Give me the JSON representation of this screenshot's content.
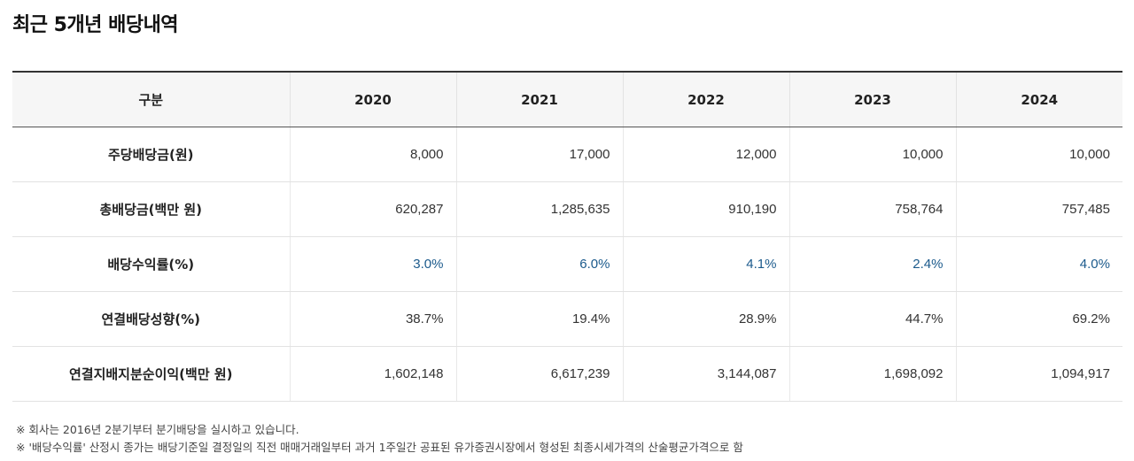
{
  "title": "최근 5개년 배당내역",
  "table": {
    "header": [
      "구분",
      "2020",
      "2021",
      "2022",
      "2023",
      "2024"
    ],
    "rows": [
      {
        "label": "주당배당금(원)",
        "values": [
          "8,000",
          "17,000",
          "12,000",
          "10,000",
          "10,000"
        ]
      },
      {
        "label": "총배당금(백만 원)",
        "values": [
          "620,287",
          "1,285,635",
          "910,190",
          "758,764",
          "757,485"
        ]
      },
      {
        "label": "배당수익률(%)",
        "values": [
          "3.0%",
          "6.0%",
          "4.1%",
          "2.4%",
          "4.0%"
        ]
      },
      {
        "label": "연결배당성향(%)",
        "values": [
          "38.7%",
          "19.4%",
          "28.9%",
          "44.7%",
          "69.2%"
        ]
      },
      {
        "label": "연결지배지분순이익(백만 원)",
        "values": [
          "1,602,148",
          "6,617,239",
          "3,144,087",
          "1,698,092",
          "1,094,917"
        ]
      }
    ]
  },
  "colors": {
    "yield_value": "#1b5a8c",
    "header_bg": "#f6f6f6"
  },
  "notes": [
    "※ 회사는 2016년 2분기부터 분기배당을 실시하고 있습니다.",
    "※ '배당수익률' 산정시 종가는 배당기준일 결정일의 직전 매매거래일부터 과거 1주일간 공표된 유가증권시장에서 형성된 최종시세가격의 산술평균가격으로 함"
  ]
}
